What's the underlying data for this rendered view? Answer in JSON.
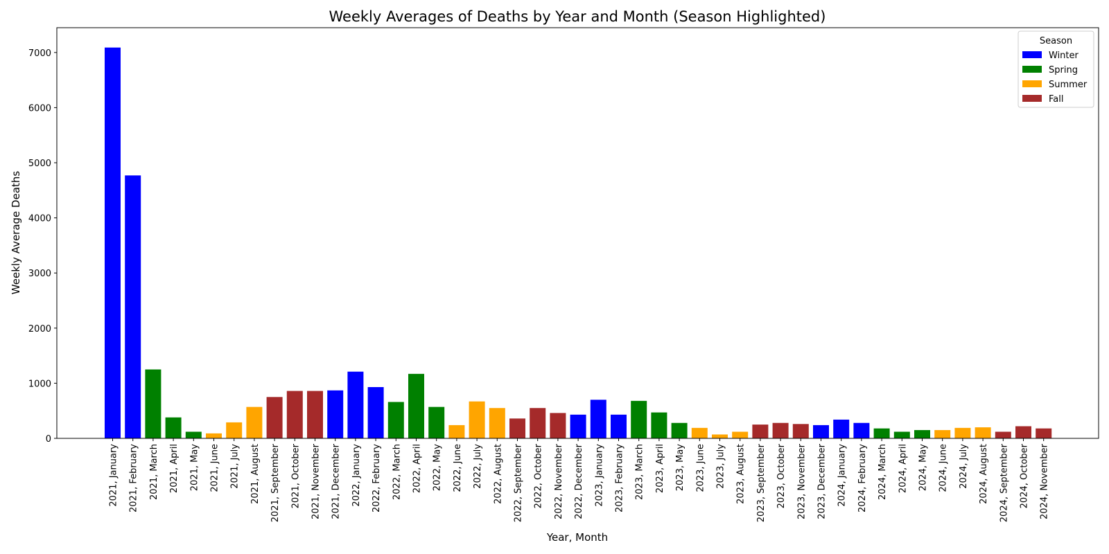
{
  "chart_data": {
    "type": "bar",
    "title": "Weekly Averages of Deaths by Year and Month (Season Highlighted)",
    "xlabel": "Year, Month",
    "ylabel": "Weekly Average Deaths",
    "ylim": [
      0,
      7450
    ],
    "yticks": [
      0,
      1000,
      2000,
      3000,
      4000,
      5000,
      6000,
      7000
    ],
    "grid": false,
    "legend": {
      "title": "Season",
      "placement": "top-right",
      "entries": [
        {
          "name": "Winter",
          "color": "#0000ff"
        },
        {
          "name": "Spring",
          "color": "#008000"
        },
        {
          "name": "Summer",
          "color": "#ffa500"
        },
        {
          "name": "Fall",
          "color": "#a52a2a"
        }
      ]
    },
    "categories": [
      "2021, January",
      "2021, February",
      "2021, March",
      "2021, April",
      "2021, May",
      "2021, June",
      "2021, July",
      "2021, August",
      "2021, September",
      "2021, October",
      "2021, November",
      "2021, December",
      "2022, January",
      "2022, February",
      "2022, March",
      "2022, April",
      "2022, May",
      "2022, June",
      "2022, July",
      "2022, August",
      "2022, September",
      "2022, October",
      "2022, November",
      "2022, December",
      "2023, January",
      "2023, February",
      "2023, March",
      "2023, April",
      "2023, May",
      "2023, June",
      "2023, July",
      "2023, August",
      "2023, September",
      "2023, October",
      "2023, November",
      "2023, December",
      "2024, January",
      "2024, February",
      "2024, March",
      "2024, April",
      "2024, May",
      "2024, June",
      "2024, July",
      "2024, August",
      "2024, September",
      "2024, October",
      "2024, November"
    ],
    "values": [
      7090,
      4770,
      1250,
      380,
      120,
      90,
      290,
      570,
      750,
      860,
      860,
      870,
      1210,
      930,
      660,
      1170,
      570,
      240,
      670,
      550,
      360,
      550,
      460,
      430,
      700,
      430,
      680,
      470,
      280,
      190,
      70,
      120,
      250,
      280,
      260,
      240,
      340,
      280,
      180,
      120,
      150,
      150,
      190,
      200,
      120,
      220,
      180
    ],
    "seasons": [
      "Winter",
      "Winter",
      "Spring",
      "Spring",
      "Spring",
      "Summer",
      "Summer",
      "Summer",
      "Fall",
      "Fall",
      "Fall",
      "Winter",
      "Winter",
      "Winter",
      "Spring",
      "Spring",
      "Spring",
      "Summer",
      "Summer",
      "Summer",
      "Fall",
      "Fall",
      "Fall",
      "Winter",
      "Winter",
      "Winter",
      "Spring",
      "Spring",
      "Spring",
      "Summer",
      "Summer",
      "Summer",
      "Fall",
      "Fall",
      "Fall",
      "Winter",
      "Winter",
      "Winter",
      "Spring",
      "Spring",
      "Spring",
      "Summer",
      "Summer",
      "Summer",
      "Fall",
      "Fall",
      "Fall"
    ]
  }
}
